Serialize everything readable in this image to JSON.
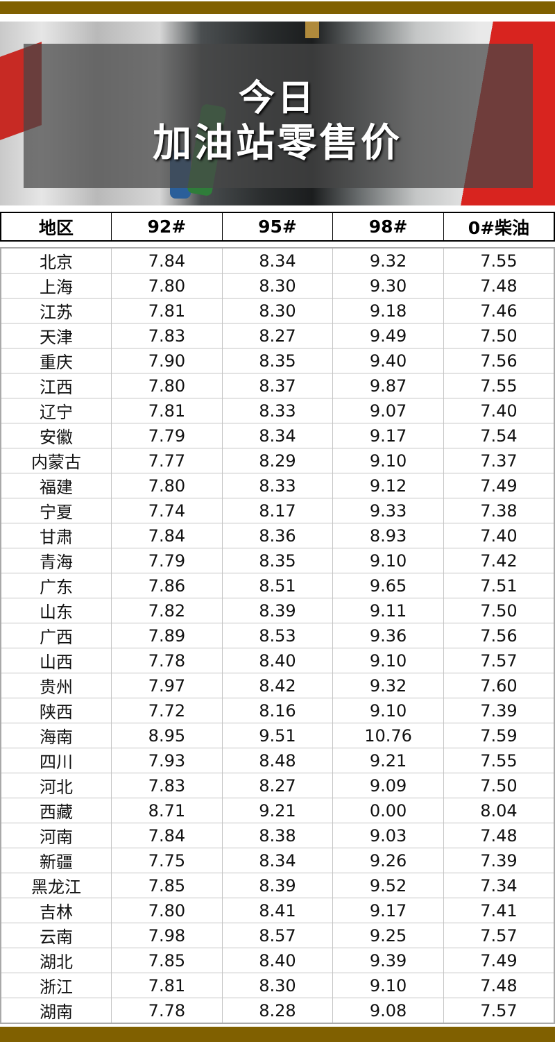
{
  "colors": {
    "accent_bar": "#806000",
    "overlay": "#464646"
  },
  "hero": {
    "title_line1": "今日",
    "title_line2": "加油站零售价",
    "image": "gas-pump-nozzles-photo"
  },
  "table": {
    "headers": [
      "地区",
      "92#",
      "95#",
      "98#",
      "0#柴油"
    ],
    "rows": [
      [
        "北京",
        "7.84",
        "8.34",
        "9.32",
        "7.55"
      ],
      [
        "上海",
        "7.80",
        "8.30",
        "9.30",
        "7.48"
      ],
      [
        "江苏",
        "7.81",
        "8.30",
        "9.18",
        "7.46"
      ],
      [
        "天津",
        "7.83",
        "8.27",
        "9.49",
        "7.50"
      ],
      [
        "重庆",
        "7.90",
        "8.35",
        "9.40",
        "7.56"
      ],
      [
        "江西",
        "7.80",
        "8.37",
        "9.87",
        "7.55"
      ],
      [
        "辽宁",
        "7.81",
        "8.33",
        "9.07",
        "7.40"
      ],
      [
        "安徽",
        "7.79",
        "8.34",
        "9.17",
        "7.54"
      ],
      [
        "内蒙古",
        "7.77",
        "8.29",
        "9.10",
        "7.37"
      ],
      [
        "福建",
        "7.80",
        "8.33",
        "9.12",
        "7.49"
      ],
      [
        "宁夏",
        "7.74",
        "8.17",
        "9.33",
        "7.38"
      ],
      [
        "甘肃",
        "7.84",
        "8.36",
        "8.93",
        "7.40"
      ],
      [
        "青海",
        "7.79",
        "8.35",
        "9.10",
        "7.42"
      ],
      [
        "广东",
        "7.86",
        "8.51",
        "9.65",
        "7.51"
      ],
      [
        "山东",
        "7.82",
        "8.39",
        "9.11",
        "7.50"
      ],
      [
        "广西",
        "7.89",
        "8.53",
        "9.36",
        "7.56"
      ],
      [
        "山西",
        "7.78",
        "8.40",
        "9.10",
        "7.57"
      ],
      [
        "贵州",
        "7.97",
        "8.42",
        "9.32",
        "7.60"
      ],
      [
        "陕西",
        "7.72",
        "8.16",
        "9.10",
        "7.39"
      ],
      [
        "海南",
        "8.95",
        "9.51",
        "10.76",
        "7.59"
      ],
      [
        "四川",
        "7.93",
        "8.48",
        "9.21",
        "7.55"
      ],
      [
        "河北",
        "7.83",
        "8.27",
        "9.09",
        "7.50"
      ],
      [
        "西藏",
        "8.71",
        "9.21",
        "0.00",
        "8.04"
      ],
      [
        "河南",
        "7.84",
        "8.38",
        "9.03",
        "7.48"
      ],
      [
        "新疆",
        "7.75",
        "8.34",
        "9.26",
        "7.39"
      ],
      [
        "黑龙江",
        "7.85",
        "8.39",
        "9.52",
        "7.34"
      ],
      [
        "吉林",
        "7.80",
        "8.41",
        "9.17",
        "7.41"
      ],
      [
        "云南",
        "7.98",
        "8.57",
        "9.25",
        "7.57"
      ],
      [
        "湖北",
        "7.85",
        "8.40",
        "9.39",
        "7.49"
      ],
      [
        "浙江",
        "7.81",
        "8.30",
        "9.10",
        "7.48"
      ],
      [
        "湖南",
        "7.78",
        "8.28",
        "9.08",
        "7.57"
      ]
    ]
  }
}
